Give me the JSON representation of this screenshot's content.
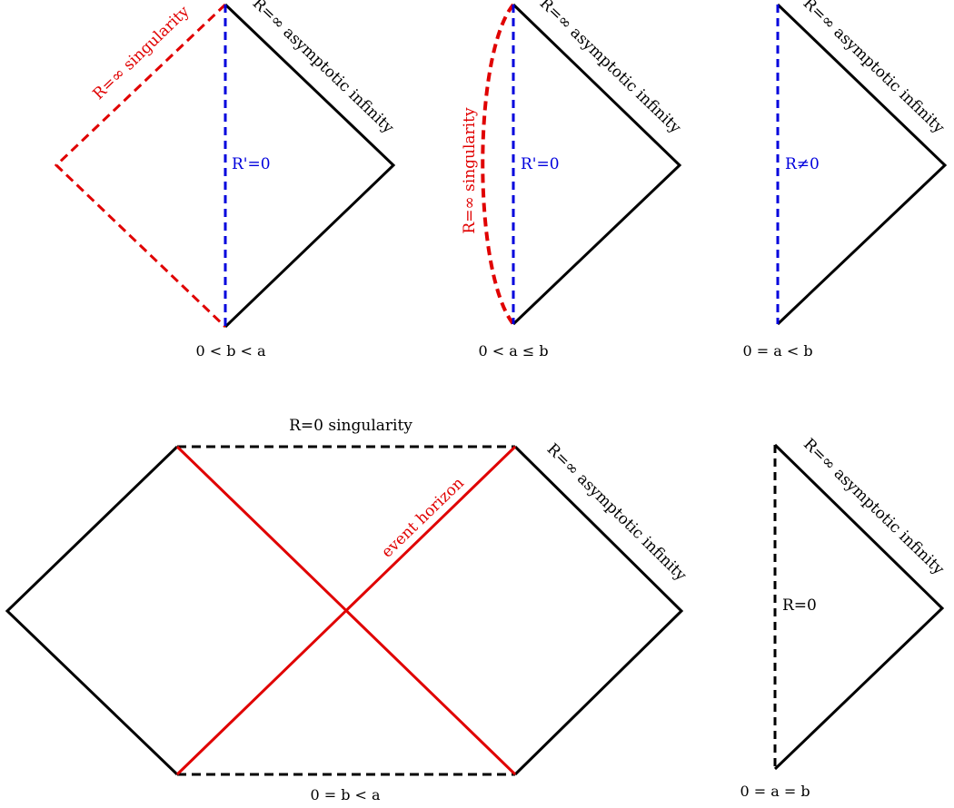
{
  "colors": {
    "black": "#000000",
    "red": "#e00000",
    "blue": "#0000dd"
  },
  "diagrams": [
    {
      "caption": "0 < b < a",
      "labels": {
        "singularity": "R=∞ singularity",
        "asymptotic": "R=∞ asymptotic infinity",
        "axis": "R'=0"
      }
    },
    {
      "caption": "0 < a ≤ b",
      "labels": {
        "singularity": "R=∞ singularity",
        "asymptotic": "R=∞ asymptotic infinity",
        "axis": "R'=0"
      }
    },
    {
      "caption": "0 = a < b",
      "labels": {
        "asymptotic": "R=∞ asymptotic infinity",
        "axis": "R≠0"
      }
    },
    {
      "caption": "0 = b < a",
      "labels": {
        "top": "R=0 singularity",
        "horizon": "event horizon",
        "asymptotic": "R=∞ asymptotic infinity"
      }
    },
    {
      "caption": "0 = a = b",
      "labels": {
        "asymptotic": "R=∞ asymptotic infinity",
        "axis": "R=0"
      }
    }
  ]
}
